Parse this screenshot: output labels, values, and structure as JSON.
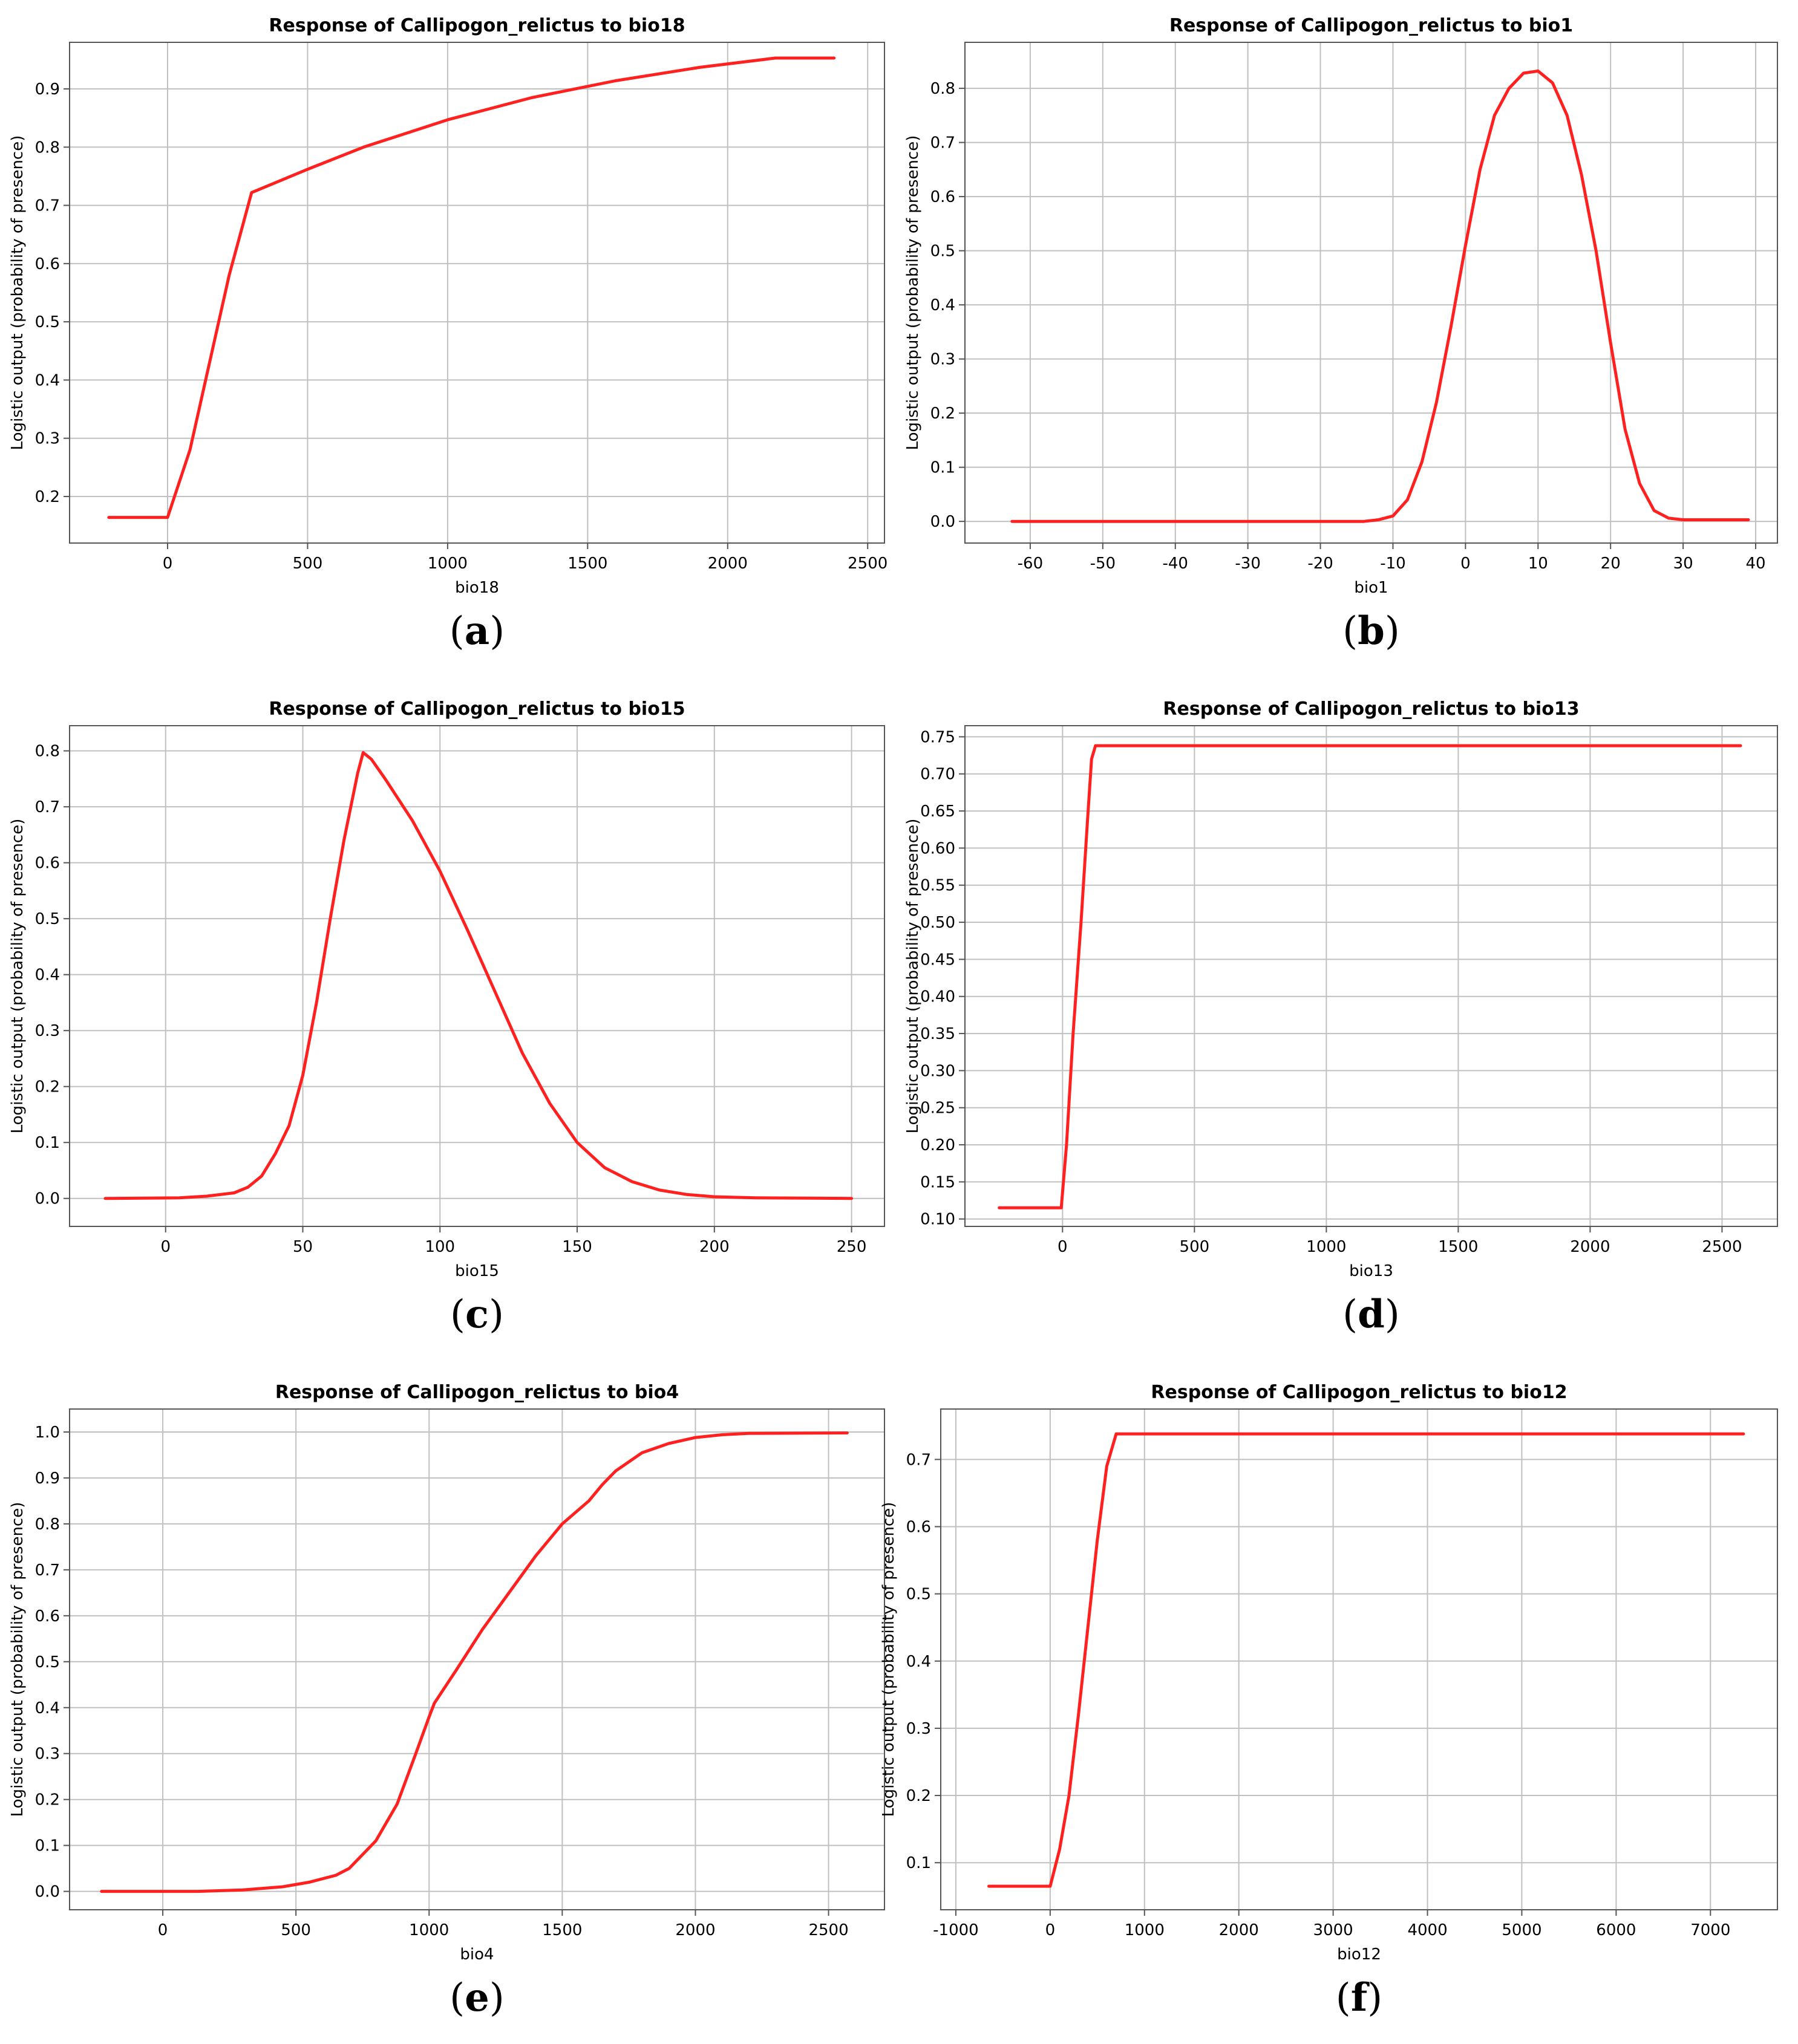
{
  "style": {
    "curve_color": "#ff2020",
    "grid_color": "#c0c0c0",
    "frame_color": "#555555"
  },
  "chart_data": [
    {
      "type": "line",
      "panel": "a",
      "title": "Response of Callipogon_relictus to bio18",
      "xlabel": "bio18",
      "ylabel": "Logistic output (probability of presence)",
      "xlim": [
        -350,
        2560
      ],
      "ylim": [
        0.12,
        0.98
      ],
      "xticks": [
        {
          "v": 0,
          "t": "0"
        },
        {
          "v": 500,
          "t": "500"
        },
        {
          "v": 1000,
          "t": "1000"
        },
        {
          "v": 1500,
          "t": "1500"
        },
        {
          "v": 2000,
          "t": "2000"
        },
        {
          "v": 2500,
          "t": "2500"
        }
      ],
      "yticks": [
        {
          "v": 0.2,
          "t": "0.2"
        },
        {
          "v": 0.3,
          "t": "0.3"
        },
        {
          "v": 0.4,
          "t": "0.4"
        },
        {
          "v": 0.5,
          "t": "0.5"
        },
        {
          "v": 0.6,
          "t": "0.6"
        },
        {
          "v": 0.7,
          "t": "0.7"
        },
        {
          "v": 0.8,
          "t": "0.8"
        },
        {
          "v": 0.9,
          "t": "0.9"
        }
      ],
      "x": [
        -210,
        0,
        80,
        150,
        220,
        300,
        500,
        700,
        1000,
        1300,
        1600,
        1900,
        2170,
        2380
      ],
      "y": [
        0.164,
        0.164,
        0.28,
        0.43,
        0.58,
        0.722,
        0.762,
        0.8,
        0.847,
        0.885,
        0.914,
        0.937,
        0.953,
        0.953
      ]
    },
    {
      "type": "line",
      "panel": "b",
      "title": "Response of Callipogon_relictus to bio1",
      "xlabel": "bio1",
      "ylabel": "Logistic output (probability of presence)",
      "xlim": [
        -69,
        43
      ],
      "ylim": [
        -0.04,
        0.885
      ],
      "xticks": [
        {
          "v": -60,
          "t": "-60"
        },
        {
          "v": -50,
          "t": "-50"
        },
        {
          "v": -40,
          "t": "-40"
        },
        {
          "v": -30,
          "t": "-30"
        },
        {
          "v": -20,
          "t": "-20"
        },
        {
          "v": -10,
          "t": "-10"
        },
        {
          "v": 0,
          "t": "0"
        },
        {
          "v": 10,
          "t": "10"
        },
        {
          "v": 20,
          "t": "20"
        },
        {
          "v": 30,
          "t": "30"
        },
        {
          "v": 40,
          "t": "40"
        }
      ],
      "yticks": [
        {
          "v": 0.0,
          "t": "0.0"
        },
        {
          "v": 0.1,
          "t": "0.1"
        },
        {
          "v": 0.2,
          "t": "0.2"
        },
        {
          "v": 0.3,
          "t": "0.3"
        },
        {
          "v": 0.4,
          "t": "0.4"
        },
        {
          "v": 0.5,
          "t": "0.5"
        },
        {
          "v": 0.6,
          "t": "0.6"
        },
        {
          "v": 0.7,
          "t": "0.7"
        },
        {
          "v": 0.8,
          "t": "0.8"
        }
      ],
      "x": [
        -62.5,
        -14,
        -12,
        -10,
        -8,
        -6,
        -4,
        -2,
        0,
        2,
        4,
        6,
        8,
        10,
        12,
        14,
        16,
        18,
        20,
        22,
        24,
        26,
        28,
        30,
        39
      ],
      "y": [
        0.0,
        0.0,
        0.003,
        0.01,
        0.04,
        0.11,
        0.22,
        0.36,
        0.51,
        0.65,
        0.75,
        0.8,
        0.828,
        0.832,
        0.81,
        0.75,
        0.64,
        0.5,
        0.33,
        0.17,
        0.07,
        0.02,
        0.006,
        0.003,
        0.003
      ]
    },
    {
      "type": "line",
      "panel": "c",
      "title": "Response of Callipogon_relictus to bio15",
      "xlabel": "bio15",
      "ylabel": "Logistic output (probability of presence)",
      "xlim": [
        -35,
        262
      ],
      "ylim": [
        -0.05,
        0.845
      ],
      "xticks": [
        {
          "v": 0,
          "t": "0"
        },
        {
          "v": 50,
          "t": "50"
        },
        {
          "v": 100,
          "t": "100"
        },
        {
          "v": 150,
          "t": "150"
        },
        {
          "v": 200,
          "t": "200"
        },
        {
          "v": 250,
          "t": "250"
        }
      ],
      "yticks": [
        {
          "v": 0.0,
          "t": "0.0"
        },
        {
          "v": 0.1,
          "t": "0.1"
        },
        {
          "v": 0.2,
          "t": "0.2"
        },
        {
          "v": 0.3,
          "t": "0.3"
        },
        {
          "v": 0.4,
          "t": "0.4"
        },
        {
          "v": 0.5,
          "t": "0.5"
        },
        {
          "v": 0.6,
          "t": "0.6"
        },
        {
          "v": 0.7,
          "t": "0.7"
        },
        {
          "v": 0.8,
          "t": "0.8"
        }
      ],
      "x": [
        -22,
        5,
        15,
        25,
        30,
        35,
        40,
        45,
        50,
        55,
        60,
        65,
        70,
        72,
        75,
        80,
        90,
        100,
        110,
        120,
        130,
        140,
        150,
        160,
        170,
        180,
        190,
        200,
        215,
        250
      ],
      "y": [
        0.0,
        0.001,
        0.004,
        0.01,
        0.02,
        0.04,
        0.08,
        0.13,
        0.22,
        0.35,
        0.5,
        0.64,
        0.76,
        0.797,
        0.785,
        0.75,
        0.675,
        0.585,
        0.48,
        0.37,
        0.26,
        0.17,
        0.1,
        0.055,
        0.03,
        0.015,
        0.007,
        0.003,
        0.001,
        0.0
      ]
    },
    {
      "type": "line",
      "panel": "d",
      "title": "Response of Callipogon_relictus to bio13",
      "xlabel": "bio13",
      "ylabel": "Logistic output (probability of presence)",
      "xlim": [
        -370,
        2710
      ],
      "ylim": [
        0.09,
        0.765
      ],
      "xticks": [
        {
          "v": 0,
          "t": "0"
        },
        {
          "v": 500,
          "t": "500"
        },
        {
          "v": 1000,
          "t": "1000"
        },
        {
          "v": 1500,
          "t": "1500"
        },
        {
          "v": 2000,
          "t": "2000"
        },
        {
          "v": 2500,
          "t": "2500"
        }
      ],
      "yticks": [
        {
          "v": 0.1,
          "t": "0.10"
        },
        {
          "v": 0.15,
          "t": "0.15"
        },
        {
          "v": 0.2,
          "t": "0.20"
        },
        {
          "v": 0.25,
          "t": "0.25"
        },
        {
          "v": 0.3,
          "t": "0.30"
        },
        {
          "v": 0.35,
          "t": "0.35"
        },
        {
          "v": 0.4,
          "t": "0.40"
        },
        {
          "v": 0.45,
          "t": "0.45"
        },
        {
          "v": 0.5,
          "t": "0.50"
        },
        {
          "v": 0.55,
          "t": "0.55"
        },
        {
          "v": 0.6,
          "t": "0.60"
        },
        {
          "v": 0.65,
          "t": "0.65"
        },
        {
          "v": 0.7,
          "t": "0.70"
        },
        {
          "v": 0.75,
          "t": "0.75"
        }
      ],
      "x": [
        -240,
        -5,
        15,
        40,
        70,
        95,
        110,
        125,
        2570
      ],
      "y": [
        0.115,
        0.115,
        0.2,
        0.35,
        0.5,
        0.64,
        0.72,
        0.738,
        0.738
      ]
    },
    {
      "type": "line",
      "panel": "e",
      "title": "Response of Callipogon_relictus to bio4",
      "xlabel": "bio4",
      "ylabel": "Logistic output (probability of presence)",
      "xlim": [
        -350,
        2710
      ],
      "ylim": [
        -0.04,
        1.05
      ],
      "xticks": [
        {
          "v": 0,
          "t": "0"
        },
        {
          "v": 500,
          "t": "500"
        },
        {
          "v": 1000,
          "t": "1000"
        },
        {
          "v": 1500,
          "t": "1500"
        },
        {
          "v": 2000,
          "t": "2000"
        },
        {
          "v": 2500,
          "t": "2500"
        }
      ],
      "yticks": [
        {
          "v": 0.0,
          "t": "0.0"
        },
        {
          "v": 0.1,
          "t": "0.1"
        },
        {
          "v": 0.2,
          "t": "0.2"
        },
        {
          "v": 0.3,
          "t": "0.3"
        },
        {
          "v": 0.4,
          "t": "0.4"
        },
        {
          "v": 0.5,
          "t": "0.5"
        },
        {
          "v": 0.6,
          "t": "0.6"
        },
        {
          "v": 0.7,
          "t": "0.7"
        },
        {
          "v": 0.8,
          "t": "0.8"
        },
        {
          "v": 0.9,
          "t": "0.9"
        },
        {
          "v": 1.0,
          "t": "1.0"
        }
      ],
      "x": [
        -230,
        130,
        300,
        450,
        550,
        650,
        700,
        800,
        880,
        950,
        1000,
        1020,
        1100,
        1200,
        1300,
        1400,
        1500,
        1600,
        1650,
        1700,
        1800,
        1900,
        2000,
        2100,
        2200,
        2570
      ],
      "y": [
        0.0,
        0.0,
        0.003,
        0.01,
        0.02,
        0.035,
        0.05,
        0.11,
        0.19,
        0.3,
        0.38,
        0.41,
        0.48,
        0.57,
        0.65,
        0.73,
        0.8,
        0.85,
        0.885,
        0.915,
        0.955,
        0.975,
        0.988,
        0.994,
        0.997,
        0.998
      ]
    },
    {
      "type": "line",
      "panel": "f",
      "title": "Response of Callipogon_relictus to bio12",
      "xlabel": "bio12",
      "ylabel": "Logistic output (probability of presence)",
      "xlim": [
        -1160,
        7710
      ],
      "ylim": [
        0.03,
        0.775
      ],
      "xticks": [
        {
          "v": -1000,
          "t": "-1000"
        },
        {
          "v": 0,
          "t": "0"
        },
        {
          "v": 1000,
          "t": "1000"
        },
        {
          "v": 2000,
          "t": "2000"
        },
        {
          "v": 3000,
          "t": "3000"
        },
        {
          "v": 4000,
          "t": "4000"
        },
        {
          "v": 5000,
          "t": "5000"
        },
        {
          "v": 6000,
          "t": "6000"
        },
        {
          "v": 7000,
          "t": "7000"
        }
      ],
      "yticks": [
        {
          "v": 0.1,
          "t": "0.1"
        },
        {
          "v": 0.2,
          "t": "0.2"
        },
        {
          "v": 0.3,
          "t": "0.3"
        },
        {
          "v": 0.4,
          "t": "0.4"
        },
        {
          "v": 0.5,
          "t": "0.5"
        },
        {
          "v": 0.6,
          "t": "0.6"
        },
        {
          "v": 0.7,
          "t": "0.7"
        }
      ],
      "x": [
        -650,
        0,
        100,
        200,
        300,
        400,
        500,
        600,
        700,
        7350
      ],
      "y": [
        0.065,
        0.065,
        0.12,
        0.2,
        0.32,
        0.45,
        0.58,
        0.69,
        0.738,
        0.738
      ]
    }
  ],
  "panel_labels": [
    {
      "open": "(",
      "letter": "a",
      "close": ")"
    },
    {
      "open": "(",
      "letter": "b",
      "close": ")"
    },
    {
      "open": "(",
      "letter": "c",
      "close": ")"
    },
    {
      "open": "(",
      "letter": "d",
      "close": ")"
    },
    {
      "open": "(",
      "letter": "e",
      "close": ")"
    },
    {
      "open": "(",
      "letter": "f",
      "close": ")"
    }
  ]
}
